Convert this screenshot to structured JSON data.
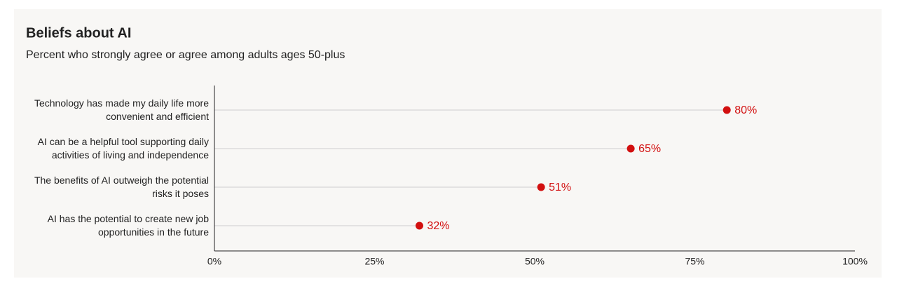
{
  "chart_data": {
    "type": "dot",
    "title": "Beliefs about AI",
    "subtitle": "Percent who strongly agree or agree among adults ages 50-plus",
    "categories": [
      "Technology has made my daily life more convenient and efficient",
      "AI can be a helpful tool supporting daily activities of living and independence",
      "The benefits of AI outweigh the potential risks it poses",
      "AI has the potential to create new job opportunities in the future"
    ],
    "values": [
      80,
      65,
      51,
      32
    ],
    "value_labels": [
      "80%",
      "65%",
      "51%",
      "32%"
    ],
    "color": "#d20f0f",
    "xlim": [
      0,
      100
    ],
    "xticks": [
      {
        "value": 0,
        "label": "0%"
      },
      {
        "value": 25,
        "label": "25%"
      },
      {
        "value": 50,
        "label": "50%"
      },
      {
        "value": 75,
        "label": "75%"
      },
      {
        "value": 100,
        "label": "100%"
      }
    ]
  }
}
